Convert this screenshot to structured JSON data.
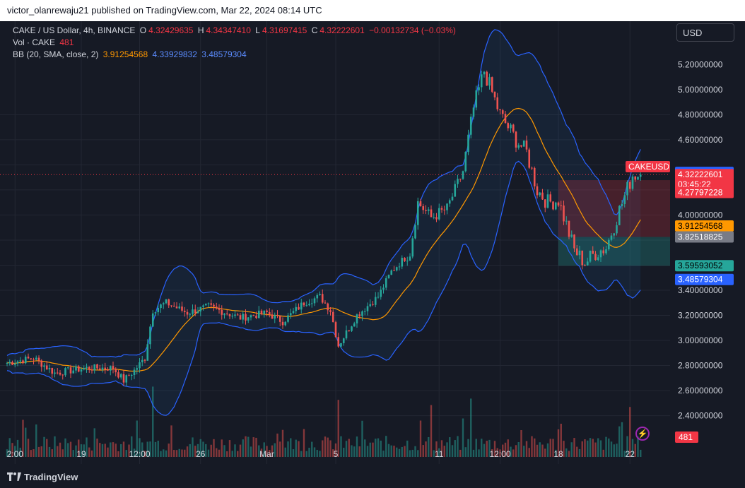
{
  "header": {
    "publisher_line": "victor_olanrewaju21 published on TradingView.com, Mar 22, 2024 08:14 UTC"
  },
  "legend": {
    "symbol": "CAKE / US Dollar, 4h, BINANCE",
    "o_label": "O",
    "o_value": "4.32429635",
    "h_label": "H",
    "h_value": "4.34347410",
    "l_label": "L",
    "l_value": "4.31697415",
    "c_label": "C",
    "c_value": "4.32222601",
    "change": "−0.00132734 (−0.03%)",
    "vol_label": "Vol · CAKE",
    "vol_value": "481",
    "bb_label": "BB (20, SMA, close, 2)",
    "bb_basis": "3.91254568",
    "bb_upper": "4.33929832",
    "bb_lower": "3.48579304"
  },
  "currency_button": "USD",
  "footer": {
    "brand": "TradingView"
  },
  "colors": {
    "up": "#26a69a",
    "down": "#ef5350",
    "basis": "#ff9800",
    "band": "#2962ff",
    "background": "#161a25",
    "grid": "#232733",
    "text": "#d1d4dc"
  },
  "chart_data": {
    "type": "candlestick",
    "ylim": [
      2.24,
      5.32
    ],
    "y_ticks": [
      {
        "value": 5.2,
        "label": "5.20000000"
      },
      {
        "value": 5.0,
        "label": "5.00000000"
      },
      {
        "value": 4.8,
        "label": "4.80000000"
      },
      {
        "value": 4.6,
        "label": "4.60000000"
      },
      {
        "value": 4.0,
        "label": "4.00000000"
      },
      {
        "value": 3.4,
        "label": "3.40000000"
      },
      {
        "value": 3.2,
        "label": "3.20000000"
      },
      {
        "value": 3.0,
        "label": "3.00000000"
      },
      {
        "value": 2.8,
        "label": "2.80000000"
      },
      {
        "value": 2.6,
        "label": "2.60000000"
      },
      {
        "value": 2.4,
        "label": "2.40000000"
      }
    ],
    "x_ticks": [
      {
        "label": "2:00",
        "bar": 3
      },
      {
        "label": "19",
        "bar": 28
      },
      {
        "label": "12:00",
        "bar": 50
      },
      {
        "label": "26",
        "bar": 73
      },
      {
        "label": "Mar",
        "bar": 98
      },
      {
        "label": "5",
        "bar": 124
      },
      {
        "label": "11",
        "bar": 163
      },
      {
        "label": "12:00",
        "bar": 186
      },
      {
        "label": "18",
        "bar": 208
      },
      {
        "label": "22",
        "bar": 235
      }
    ],
    "price_labels": [
      {
        "label": "4.33929832",
        "value": 4.3393,
        "color": "#2962ff",
        "text_color": "#ffffff"
      },
      {
        "label": "CAKEUSD",
        "value": 4.385,
        "color": "#f23645",
        "text_color": "#ffffff"
      },
      {
        "label": "4.32222601",
        "value": 4.3222,
        "color": "#f23645",
        "text_color": "#ffffff"
      },
      {
        "label": "03:45:22",
        "value": 4.245,
        "color": "#f23645",
        "text_color": "#ffffff"
      },
      {
        "label": "4.27797228",
        "value": 4.18,
        "color": "#f23645",
        "text_color": "#ffffff"
      },
      {
        "label": "3.91254568",
        "value": 3.9125,
        "color": "#ff9800",
        "text_color": "#000000"
      },
      {
        "label": "3.82518825",
        "value": 3.8252,
        "color": "#787b86",
        "text_color": "#ffffff"
      },
      {
        "label": "3.59593052",
        "value": 3.5959,
        "color": "#26a69a",
        "text_color": "#000000"
      },
      {
        "label": "3.48579304",
        "value": 3.4858,
        "color": "#2962ff",
        "text_color": "#ffffff"
      }
    ],
    "volume_label": "481",
    "current_price": 4.3222,
    "position_box": {
      "bar_start": 208,
      "bar_end": 245,
      "target": 4.278,
      "entry": 3.8252,
      "stop": 3.5959
    },
    "bars": 240
  }
}
